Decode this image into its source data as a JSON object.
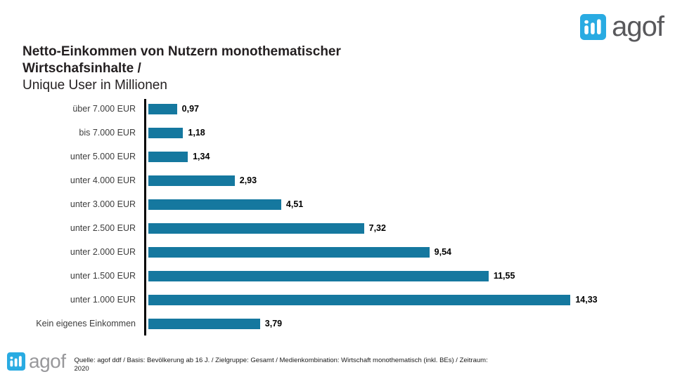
{
  "logo": {
    "text": "agof",
    "icon": "bar-chart-logo-icon",
    "blue": "#29abe2",
    "wordmark_color_top": "#58585b",
    "wordmark_color_bottom": "#98989b"
  },
  "title": {
    "line1": "Netto-Einkommen von Nutzern monothematischer",
    "line2": "Wirtschafsinhalte /",
    "line3": "Unique User in Millionen"
  },
  "chart_data": {
    "type": "bar",
    "orientation": "horizontal",
    "title": "Netto-Einkommen von Nutzern monothematischer Wirtschafsinhalte / Unique User in Millionen",
    "xlabel": "Unique User in Millionen",
    "ylabel": "Netto-Einkommen",
    "categories": [
      "über 7.000 EUR",
      "bis 7.000 EUR",
      "unter 5.000 EUR",
      "unter 4.000 EUR",
      "unter 3.000 EUR",
      "unter 2.500 EUR",
      "unter 2.000 EUR",
      "unter 1.500 EUR",
      "unter 1.000 EUR",
      "Kein eigenes Einkommen"
    ],
    "values": [
      0.97,
      1.18,
      1.34,
      2.93,
      4.51,
      7.32,
      9.54,
      11.55,
      14.33,
      3.79
    ],
    "value_labels": [
      "0,97",
      "1,18",
      "1,34",
      "2,93",
      "4,51",
      "7,32",
      "9,54",
      "11,55",
      "14,33",
      "3,79"
    ],
    "bar_color": "#15789f",
    "axis_color": "#000000",
    "xlim": [
      0,
      17.88
    ],
    "grid": false,
    "legend": false
  },
  "footer": {
    "line1": "Quelle: agof ddf / Basis: Bevölkerung ab 16 J. / Zielgruppe: Gesamt / Medienkombination: Wirtschaft monothematisch (inkl. BEs) / Zeitraum:",
    "line2": "2020"
  }
}
